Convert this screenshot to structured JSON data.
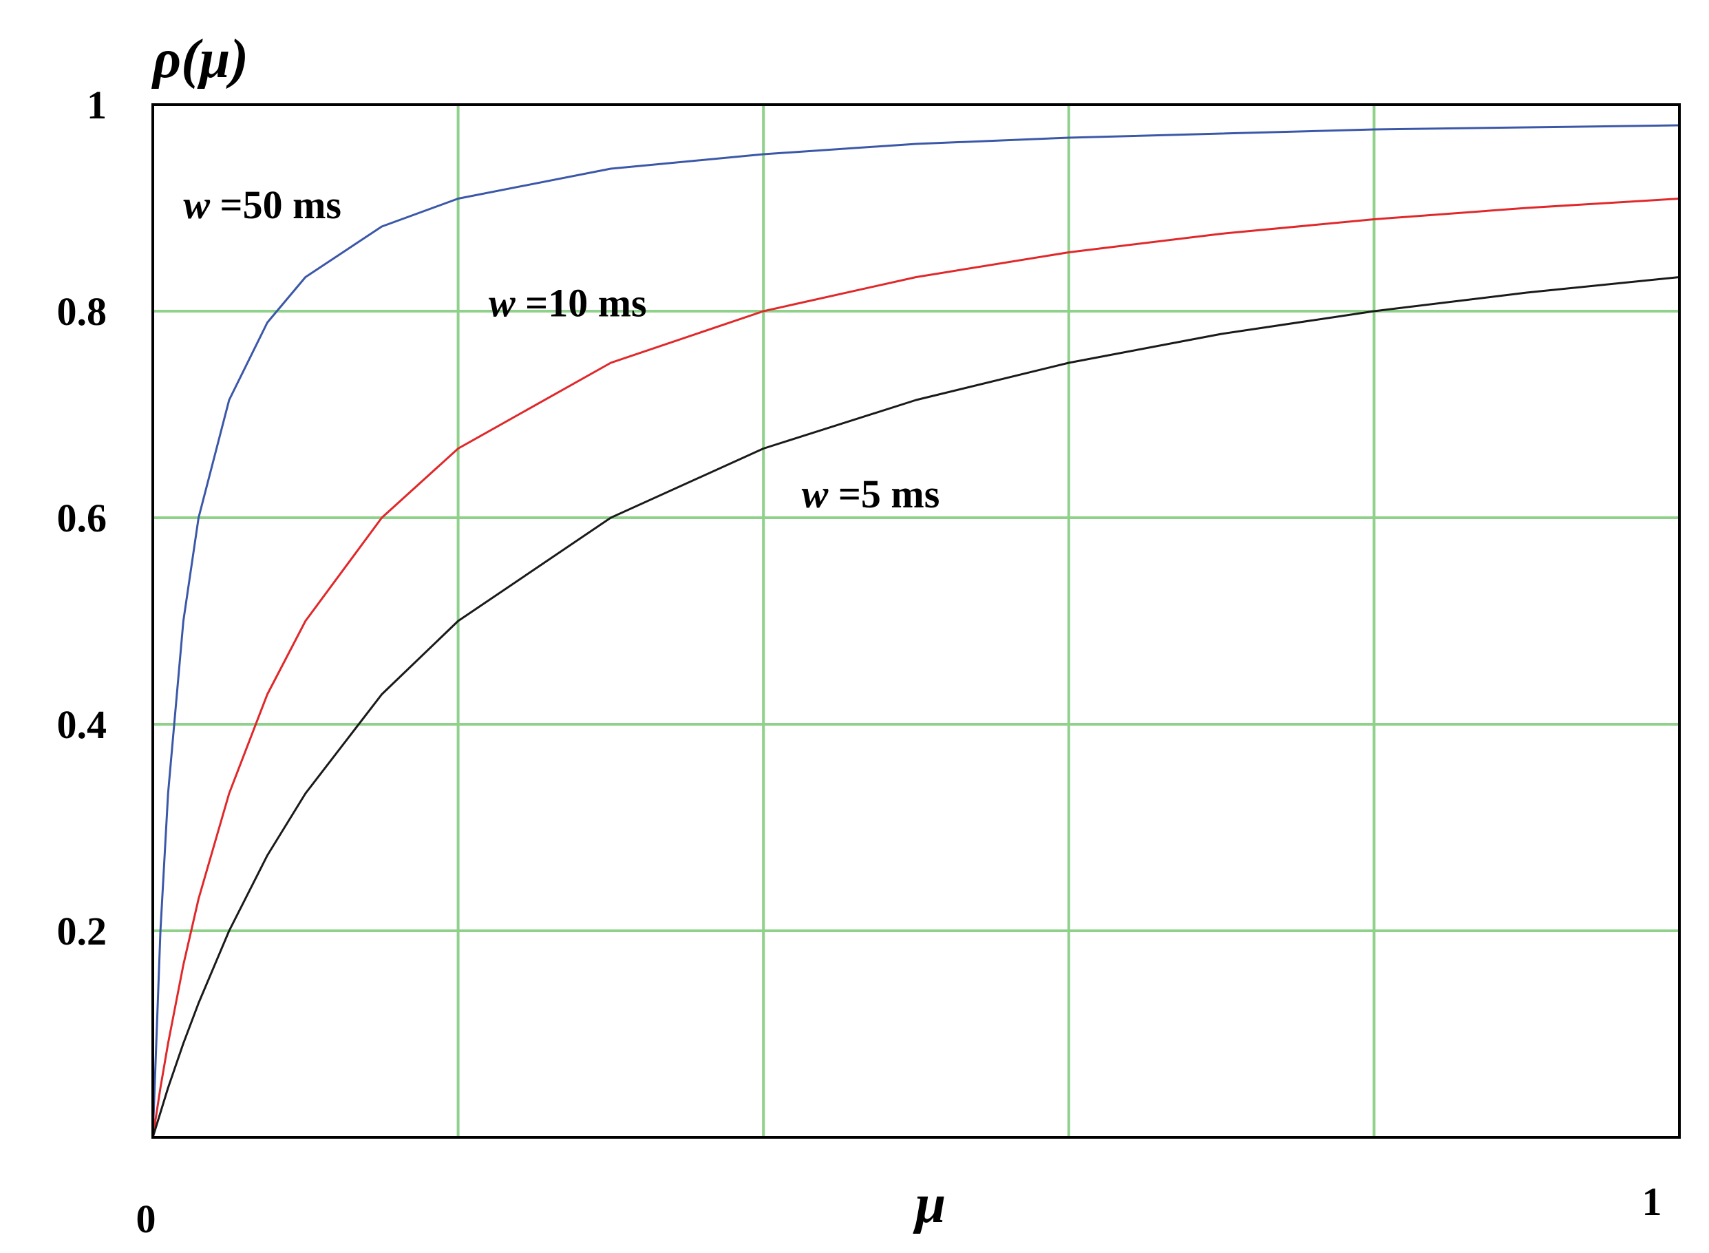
{
  "chart_data": {
    "type": "line",
    "title": "",
    "xlabel": "μ",
    "ylabel": "ρ(μ)",
    "xlim": [
      0,
      1
    ],
    "ylim": [
      0,
      1
    ],
    "x_tick_labels": [
      "0",
      "1"
    ],
    "y_tick_labels": [
      "0.2",
      "0.4",
      "0.6",
      "0.8",
      "1"
    ],
    "y_ticks": [
      0.2,
      0.4,
      0.6,
      0.8,
      1.0
    ],
    "x_grid_values": [
      0.2,
      0.4,
      0.6,
      0.8
    ],
    "grid": true,
    "grid_color": "#8fd18a",
    "series": [
      {
        "label_var": "w",
        "label_text": " =50 ms",
        "color": "#3b57a8",
        "label_anchor": [
          0.02,
          0.89
        ],
        "x": [
          0,
          0.005,
          0.01,
          0.02,
          0.03,
          0.05,
          0.075,
          0.1,
          0.15,
          0.2,
          0.3,
          0.4,
          0.5,
          0.6,
          0.7,
          0.8,
          0.9,
          1.0
        ],
        "y": [
          0,
          0.2,
          0.333,
          0.5,
          0.6,
          0.714,
          0.789,
          0.833,
          0.882,
          0.909,
          0.938,
          0.952,
          0.962,
          0.968,
          0.972,
          0.976,
          0.978,
          0.98
        ]
      },
      {
        "label_var": "w",
        "label_text": " =10 ms",
        "color": "#e0282a",
        "label_anchor": [
          0.22,
          0.795
        ],
        "x": [
          0,
          0.005,
          0.01,
          0.02,
          0.03,
          0.05,
          0.075,
          0.1,
          0.15,
          0.2,
          0.3,
          0.4,
          0.5,
          0.6,
          0.7,
          0.8,
          0.9,
          1.0
        ],
        "y": [
          0,
          0.048,
          0.091,
          0.167,
          0.231,
          0.333,
          0.429,
          0.5,
          0.6,
          0.667,
          0.75,
          0.8,
          0.833,
          0.857,
          0.875,
          0.889,
          0.9,
          0.909
        ]
      },
      {
        "label_var": "w",
        "label_text": " =5 ms",
        "color": "#1a1a1a",
        "label_anchor": [
          0.425,
          0.61
        ],
        "x": [
          0,
          0.005,
          0.01,
          0.02,
          0.03,
          0.05,
          0.075,
          0.1,
          0.15,
          0.2,
          0.3,
          0.4,
          0.5,
          0.6,
          0.7,
          0.8,
          0.9,
          1.0
        ],
        "y": [
          0,
          0.024,
          0.048,
          0.091,
          0.13,
          0.2,
          0.273,
          0.333,
          0.429,
          0.5,
          0.6,
          0.667,
          0.714,
          0.75,
          0.778,
          0.8,
          0.818,
          0.833
        ]
      }
    ]
  }
}
